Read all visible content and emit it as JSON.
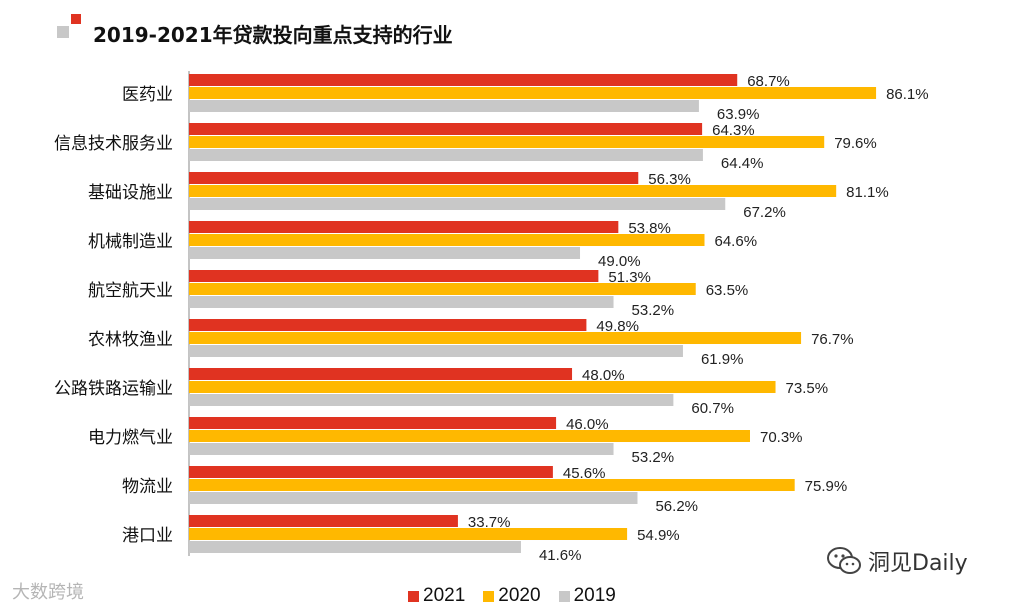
{
  "title": "2019-2021年贷款投向重点支持的行业",
  "chart_data": {
    "type": "bar",
    "orientation": "horizontal",
    "title": "2019-2021年贷款投向重点支持的行业",
    "categories": [
      "医药业",
      "信息技术服务业",
      "基础设施业",
      "机械制造业",
      "航空航天业",
      "农林牧渔业",
      "公路铁路运输业",
      "电力燃气业",
      "物流业",
      "港口业"
    ],
    "series": [
      {
        "name": "2021",
        "color": "#E03321",
        "values": [
          68.7,
          64.3,
          56.3,
          53.8,
          51.3,
          49.8,
          48.0,
          46.0,
          45.6,
          33.7
        ],
        "labels": [
          "68.7%",
          "64.3%",
          "56.3%",
          "53.8%",
          "51.3%",
          "49.8%",
          "48.0%",
          "46.0%",
          "45.6%",
          "33.7%"
        ]
      },
      {
        "name": "2020",
        "color": "#FFB800",
        "values": [
          86.1,
          79.6,
          81.1,
          64.6,
          63.5,
          76.7,
          73.5,
          70.3,
          75.9,
          54.9
        ],
        "labels": [
          "86.1%",
          "79.6%",
          "81.1%",
          "64.6%",
          "63.5%",
          "76.7%",
          "73.5%",
          "70.3%",
          "75.9%",
          "54.9%"
        ]
      },
      {
        "name": "2019",
        "color": "#C8C8C8",
        "values": [
          63.9,
          64.4,
          67.2,
          49.0,
          53.2,
          61.9,
          60.7,
          53.2,
          56.2,
          41.6
        ],
        "labels": [
          "63.9%",
          "64.4%",
          "67.2%",
          "49.0%",
          "53.2%",
          "61.9%",
          "60.7%",
          "53.2%",
          "56.2%",
          "41.6%"
        ]
      }
    ],
    "xlim": [
      0,
      100
    ],
    "xlabel": "",
    "ylabel": "",
    "grid": false,
    "legend_position": "bottom-center"
  },
  "watermarks": {
    "left": "大数跨境",
    "right": "洞见Daily"
  }
}
